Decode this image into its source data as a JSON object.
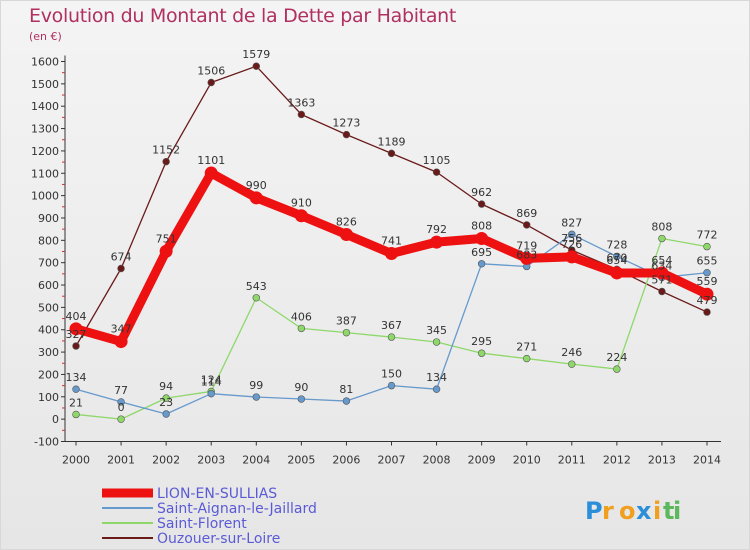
{
  "chart_data": {
    "type": "line",
    "title": "Evolution du Montant de la Dette par Habitant",
    "subtitle": "(en €)",
    "x": [
      "2000",
      "2001",
      "2002",
      "2003",
      "2004",
      "2005",
      "2006",
      "2007",
      "2008",
      "2009",
      "2010",
      "2011",
      "2012",
      "2013",
      "2014"
    ],
    "ylim": [
      -100,
      1600
    ],
    "y_ticks": [
      -100,
      0,
      100,
      200,
      300,
      400,
      500,
      600,
      700,
      800,
      900,
      1000,
      1100,
      1200,
      1300,
      1400,
      1500,
      1600
    ],
    "grid": false,
    "legend_position": "bottom-left",
    "series": [
      {
        "name": "Ouzouer-sur-Loire",
        "color": "#6b1a1a",
        "values": [
          327,
          674,
          1152,
          1506,
          1579,
          1363,
          1273,
          1189,
          1105,
          962,
          869,
          756,
          670,
          571,
          479
        ]
      },
      {
        "name": "Saint-Florent",
        "color": "#8ed86a",
        "values": [
          21,
          0,
          94,
          124,
          543,
          406,
          387,
          367,
          345,
          295,
          271,
          246,
          224,
          808,
          772
        ]
      },
      {
        "name": "Saint-Aignan-le-Jaillard",
        "color": "#6699cc",
        "values": [
          134,
          77,
          23,
          114,
          99,
          90,
          81,
          150,
          134,
          695,
          683,
          827,
          728,
          634,
          655
        ]
      },
      {
        "name": "LION-EN-SULLIAS",
        "color": "#ee1111",
        "values": [
          404,
          347,
          751,
          1101,
          990,
          910,
          826,
          741,
          792,
          808,
          719,
          726,
          654,
          654,
          559
        ]
      }
    ]
  },
  "watermark": "Proxiti"
}
